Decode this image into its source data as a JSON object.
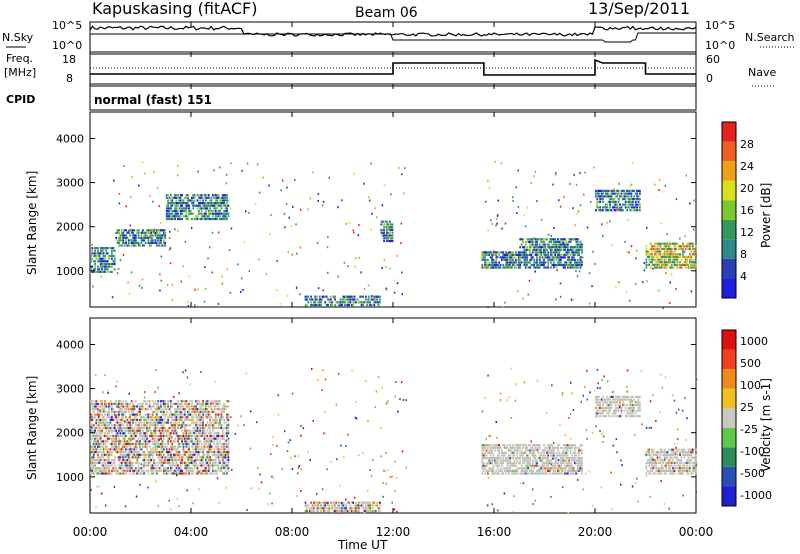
{
  "header": {
    "title": "Kapuskasing (fitACF)",
    "beam": "Beam 06",
    "date": "13/Sep/2011"
  },
  "nsky_panel": {
    "left_label": "N.Sky",
    "left_ticks": [
      "10^5",
      "10^0"
    ],
    "right_label": "N.Search",
    "right_ticks": [
      "10^5",
      "10^0"
    ]
  },
  "freq_panel": {
    "left_label_line1": "Freq.",
    "left_label_line2": "[MHz]",
    "left_ticks": [
      "18",
      "8"
    ],
    "right_label": "Nave",
    "right_ticks": [
      "60",
      "0"
    ]
  },
  "cpid": {
    "label": "CPID",
    "value": "normal (fast) 151"
  },
  "chart_data": [
    {
      "type": "heatmap",
      "name_ref": "power",
      "ylabel": "Slant Range [km]",
      "ylim": [
        180,
        4600
      ],
      "yticks": [
        "1000",
        "2000",
        "3000",
        "4000"
      ],
      "xlim_hours": [
        0,
        24
      ],
      "colorbar": {
        "label": "Power [dB]",
        "ticks": [
          "4",
          "8",
          "12",
          "16",
          "20",
          "24",
          "28"
        ],
        "colors": [
          "#1f1fe0",
          "#2a3fb8",
          "#2e8a8a",
          "#2f9a5a",
          "#7dc82a",
          "#d8e01e",
          "#f0a018",
          "#f06020",
          "#e82020"
        ]
      },
      "echo_regions": [
        {
          "t": [
            0.0,
            1.0
          ],
          "range": [
            1000,
            1600
          ],
          "level": "moderate"
        },
        {
          "t": [
            1.0,
            3.0
          ],
          "range": [
            1600,
            2000
          ],
          "level": "moderate"
        },
        {
          "t": [
            3.0,
            5.5
          ],
          "range": [
            2200,
            2800
          ],
          "level": "moderate"
        },
        {
          "t": [
            8.5,
            11.5
          ],
          "range": [
            250,
            500
          ],
          "level": "moderate"
        },
        {
          "t": [
            11.5,
            12.0
          ],
          "range": [
            1700,
            2200
          ],
          "level": "moderate"
        },
        {
          "t": [
            15.5,
            19.5
          ],
          "range": [
            1100,
            1500
          ],
          "level": "moderate"
        },
        {
          "t": [
            17.0,
            19.5
          ],
          "range": [
            1500,
            1800
          ],
          "level": "moderate"
        },
        {
          "t": [
            20.0,
            21.8
          ],
          "range": [
            2400,
            2900
          ],
          "level": "moderate"
        },
        {
          "t": [
            22.0,
            24.0
          ],
          "range": [
            1100,
            1700
          ],
          "level": "strong"
        }
      ]
    },
    {
      "type": "heatmap",
      "name_ref": "velocity",
      "ylabel": "Slant Range [km]",
      "ylim": [
        180,
        4600
      ],
      "yticks": [
        "1000",
        "2000",
        "3000",
        "4000"
      ],
      "xlabel": "Time UT",
      "xticks": [
        "00:00",
        "04:00",
        "08:00",
        "12:00",
        "16:00",
        "20:00",
        "00:00"
      ],
      "xlim_hours": [
        0,
        24
      ],
      "colorbar": {
        "label": "Velocity [m s-1]",
        "ticks": [
          "1000",
          "500",
          "100",
          "25",
          "-25",
          "-100",
          "-500",
          "-1000"
        ],
        "colors": [
          "#2020d0",
          "#2a50b8",
          "#2e8a5a",
          "#5fc84a",
          "#c8c8c0",
          "#f0c020",
          "#f08a18",
          "#f04020",
          "#e01010"
        ]
      },
      "echo_regions": [
        {
          "t": [
            0.0,
            5.5
          ],
          "range": [
            1100,
            2800
          ],
          "level": "slow"
        },
        {
          "t": [
            8.5,
            11.5
          ],
          "range": [
            250,
            500
          ],
          "level": "slow"
        },
        {
          "t": [
            15.5,
            19.5
          ],
          "range": [
            1100,
            1800
          ],
          "level": "ground-scatter"
        },
        {
          "t": [
            20.0,
            21.8
          ],
          "range": [
            2400,
            2900
          ],
          "level": "ground-scatter"
        },
        {
          "t": [
            22.0,
            24.0
          ],
          "range": [
            1100,
            1700
          ],
          "level": "ground-scatter"
        }
      ]
    }
  ],
  "colors": {
    "axis": "#000000",
    "ground_scatter": "#c0c0b8"
  }
}
